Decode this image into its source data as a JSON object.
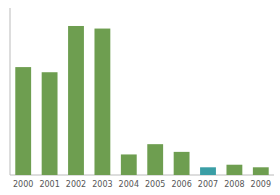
{
  "chart_data": {
    "type": "bar",
    "categories": [
      "2000",
      "2001",
      "2002",
      "2003",
      "2004",
      "2005",
      "2006",
      "2007",
      "2008",
      "2009"
    ],
    "values": [
      42,
      40,
      58,
      57,
      8,
      12,
      9,
      3,
      4,
      3
    ],
    "colors": [
      "#6e9e50",
      "#6e9e50",
      "#6e9e50",
      "#6e9e50",
      "#6e9e50",
      "#6e9e50",
      "#6e9e50",
      "#3a9ea5",
      "#6e9e50",
      "#6e9e50"
    ],
    "ylim": [
      0,
      65
    ],
    "grid": false,
    "tick_labels": "x"
  }
}
